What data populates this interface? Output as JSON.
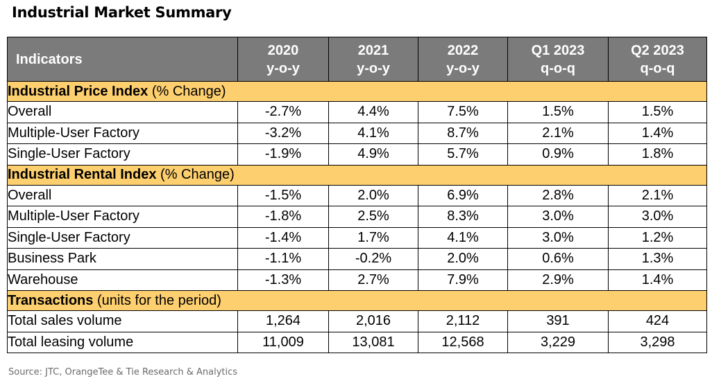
{
  "title": "Industrial Market Summary",
  "header": {
    "indicators": "Indicators",
    "columns": [
      {
        "line1": "2020",
        "line2": "y-o-y"
      },
      {
        "line1": "2021",
        "line2": "y-o-y"
      },
      {
        "line1": "2022",
        "line2": "y-o-y"
      },
      {
        "line1": "Q1 2023",
        "line2": "q-o-q"
      },
      {
        "line1": "Q2 2023",
        "line2": "q-o-q"
      }
    ]
  },
  "sections": [
    {
      "title_bold": "Industrial Price Index",
      "title_rest": " (% Change)",
      "rows": [
        {
          "label": "Overall",
          "values": [
            "-2.7%",
            "4.4%",
            "7.5%",
            "1.5%",
            "1.5%"
          ]
        },
        {
          "label": "Multiple-User Factory",
          "values": [
            "-3.2%",
            "4.1%",
            "8.7%",
            "2.1%",
            "1.4%"
          ]
        },
        {
          "label": "Single-User Factory",
          "values": [
            "-1.9%",
            "4.9%",
            "5.7%",
            "0.9%",
            "1.8%"
          ]
        }
      ]
    },
    {
      "title_bold": "Industrial Rental Index",
      "title_rest": " (% Change)",
      "rows": [
        {
          "label": "Overall",
          "values": [
            "-1.5%",
            "2.0%",
            "6.9%",
            "2.8%",
            "2.1%"
          ]
        },
        {
          "label": "Multiple-User Factory",
          "values": [
            "-1.8%",
            "2.5%",
            "8.3%",
            "3.0%",
            "3.0%"
          ]
        },
        {
          "label": "Single-User Factory",
          "values": [
            "-1.4%",
            "1.7%",
            "4.1%",
            "3.0%",
            "1.2%"
          ]
        },
        {
          "label": "Business Park",
          "values": [
            "-1.1%",
            "-0.2%",
            "2.0%",
            "0.6%",
            "1.3%"
          ]
        },
        {
          "label": "Warehouse",
          "values": [
            "-1.3%",
            "2.7%",
            "7.9%",
            "2.9%",
            "1.4%"
          ]
        }
      ]
    },
    {
      "title_bold": "Transactions",
      "title_rest": " (units for the period)",
      "rows": [
        {
          "label": "Total sales volume",
          "values": [
            "1,264",
            "2,016",
            "2,112",
            "391",
            "424"
          ]
        },
        {
          "label": "Total leasing volume",
          "values": [
            "11,009",
            "13,081",
            "12,568",
            "3,229",
            "3,298"
          ]
        }
      ]
    }
  ],
  "source": "Source: JTC, OrangeTee & Tie Research & Analytics"
}
